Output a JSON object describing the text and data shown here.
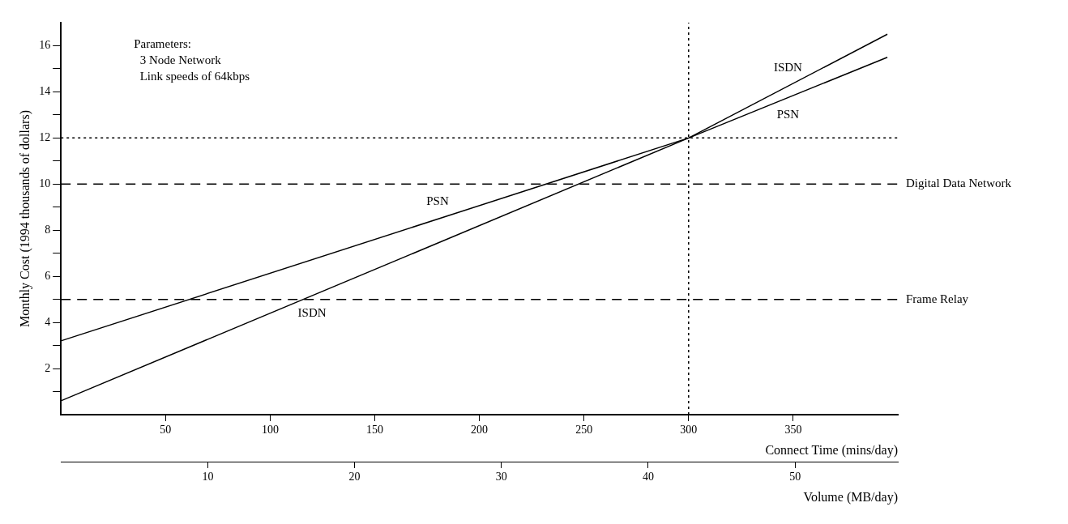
{
  "chart_data": {
    "type": "line",
    "ylabel": "Monthly Cost (1994 thousands of dollars)",
    "xlabel": "Connect Time (mins/day)",
    "x2label": "Volume (MB/day)",
    "xlim": [
      0,
      400
    ],
    "xticks": [
      50,
      100,
      150,
      200,
      250,
      300,
      350
    ],
    "x2lim": [
      0,
      57
    ],
    "x2ticks": [
      10,
      20,
      30,
      40,
      50
    ],
    "ylim": [
      0,
      17
    ],
    "yticks": [
      {
        "value": 1,
        "label": null
      },
      2,
      {
        "value": 3,
        "label": null
      },
      4,
      {
        "value": 5,
        "label": null
      },
      6,
      {
        "value": 7,
        "label": null
      },
      8,
      {
        "value": 9,
        "label": null
      },
      10,
      {
        "value": 11,
        "label": null
      },
      12,
      {
        "value": 13,
        "label": null
      },
      14,
      {
        "value": 15,
        "label": null
      },
      16
    ],
    "series": [
      {
        "name": "ISDN",
        "color": "#000000",
        "x": [
          0,
          300,
          395
        ],
        "values": [
          0.6,
          12,
          16.5
        ]
      },
      {
        "name": "PSN",
        "color": "#000000",
        "x": [
          0,
          300,
          395
        ],
        "values": [
          3.2,
          12,
          15.5
        ]
      }
    ],
    "ref_lines": [
      {
        "axis": "y",
        "value": 10,
        "label": "Digital Data Network",
        "color": "#000000",
        "line_style": "dashed"
      },
      {
        "axis": "y",
        "value": 5,
        "label": "Frame Relay",
        "color": "#000000",
        "line_style": "dashed"
      },
      {
        "axis": "y",
        "value": 12,
        "label": null,
        "color": "#000000",
        "line_style": "dotted"
      },
      {
        "axis": "x",
        "value": 300,
        "label": null,
        "color": "#000000",
        "line_style": "dotted"
      }
    ],
    "annotations": [
      "Parameters:",
      "  3 Node Network",
      "  Link speeds of 64kbps"
    ],
    "marker": "none",
    "line_style": "solid",
    "grid": false,
    "legend": false
  }
}
